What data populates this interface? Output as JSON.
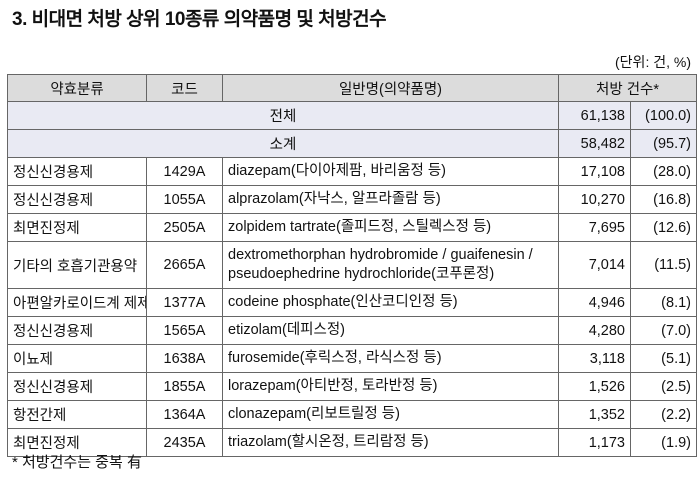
{
  "title": "3. 비대면 처방 상위 10종류 의약품명 및 처방건수",
  "unit": "(단위: 건, %)",
  "table": {
    "headers": {
      "class": "약효분류",
      "code": "코드",
      "name": "일반명(의약품명)",
      "count": "처방 건수*"
    },
    "total": {
      "label": "전체",
      "count": "61,138",
      "pct": "(100.0)"
    },
    "subtotal": {
      "label": "소계",
      "count": "58,482",
      "pct": "(95.7)"
    },
    "rows": [
      {
        "class": "정신신경용제",
        "code": "1429A",
        "name": "diazepam(다이아제팜, 바리움정 등)",
        "count": "17,108",
        "pct": "(28.0)"
      },
      {
        "class": "정신신경용제",
        "code": "1055A",
        "name": "alprazolam(자낙스, 알프라졸람 등)",
        "count": "10,270",
        "pct": "(16.8)"
      },
      {
        "class": "최면진정제",
        "code": "2505A",
        "name": "zolpidem tartrate(졸피드정, 스틸렉스정 등)",
        "count": "7,695",
        "pct": "(12.6)"
      },
      {
        "class": "기타의 호흡기관용약",
        "code": "2665A",
        "name": "dextromethorphan hydrobromide / guaifenesin /",
        "name2": "pseudoephedrine  hydrochloride(코푸론정)",
        "count": "7,014",
        "pct": "(11.5)"
      },
      {
        "class": "아편알카로이드계 제제",
        "code": "1377A",
        "name": "codeine phosphate(인산코디인정 등)",
        "count": "4,946",
        "pct": "(8.1)"
      },
      {
        "class": "정신신경용제",
        "code": "1565A",
        "name": "etizolam(데피스정)",
        "count": "4,280",
        "pct": "(7.0)"
      },
      {
        "class": "이뇨제",
        "code": "1638A",
        "name": "furosemide(후릭스정, 라식스정 등)",
        "count": "3,118",
        "pct": "(5.1)"
      },
      {
        "class": "정신신경용제",
        "code": "1855A",
        "name": "lorazepam(아티반정, 토라반정 등)",
        "count": "1,526",
        "pct": "(2.5)"
      },
      {
        "class": "항전간제",
        "code": "1364A",
        "name": "clonazepam(리보트릴정 등)",
        "count": "1,352",
        "pct": "(2.2)"
      },
      {
        "class": "최면진정제",
        "code": "2435A",
        "name": "triazolam(할시온정, 트리람정 등)",
        "count": "1,173",
        "pct": "(1.9)"
      }
    ]
  },
  "footnote": "*  처방건수는 중복 有"
}
